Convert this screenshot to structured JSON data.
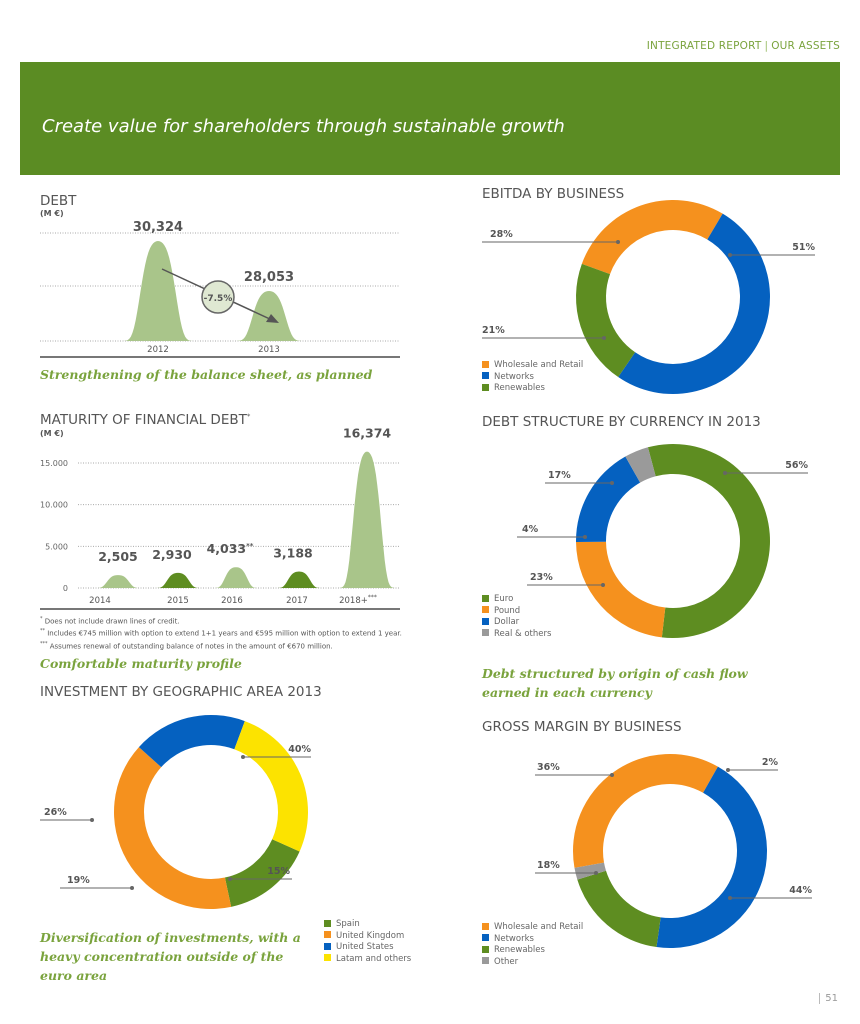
{
  "header": {
    "section": "INTEGRATED REPORT",
    "separator": "|",
    "subsection": "OUR ASSETS",
    "banner_title": "Create value for shareholders through sustainable growth"
  },
  "colors": {
    "banner": "#5b8c23",
    "light_green": "#a9c58a",
    "dark_green": "#5e8d21",
    "orange": "#f5911e",
    "blue": "#0561c0",
    "gray": "#9a9a9a",
    "yellow": "#fce300",
    "caption": "#7aa33d"
  },
  "chart_data": [
    {
      "id": "debt",
      "type": "area",
      "title": "DEBT",
      "unit": "(M €)",
      "categories": [
        "2012",
        "2013"
      ],
      "values": [
        30324,
        28053
      ],
      "value_labels": [
        "30,324",
        "28,053"
      ],
      "change_label": "-7.5%",
      "grid": true,
      "caption": "Strengthening of the balance sheet, as planned"
    },
    {
      "id": "maturity",
      "type": "area",
      "title": "MATURITY OF FINANCIAL DEBT",
      "title_mark": "*",
      "unit": "(M €)",
      "categories": [
        "2014",
        "2015",
        "2016",
        "2017",
        "2018+"
      ],
      "category_marks": [
        "",
        "",
        "",
        "",
        "***"
      ],
      "values": [
        2505,
        2930,
        4033,
        3188,
        16374
      ],
      "value_labels": [
        "2,505",
        "2,930",
        "4,033",
        "3,188",
        "16,374"
      ],
      "value_marks": [
        "",
        "",
        "**",
        "",
        ""
      ],
      "ylim": [
        0,
        16374
      ],
      "yticks": [
        "0",
        "5.000",
        "10.000",
        "15.000"
      ],
      "ytick_values": [
        0,
        5000,
        10000,
        15000
      ],
      "grid": true,
      "footnotes": [
        {
          "mark": "*",
          "text": "Does not include drawn lines of credit."
        },
        {
          "mark": "**",
          "text": "Includes €745 million with option to extend 1+1 years and €595 million with option to extend 1 year."
        },
        {
          "mark": "***",
          "text": "Assumes renewal of outstanding balance of notes in the amount of €670 million."
        }
      ],
      "caption": "Comfortable maturity profile"
    },
    {
      "id": "ebitda",
      "type": "pie",
      "title": "EBITDA BY BUSINESS",
      "series": [
        {
          "name": "Wholesale and Retail",
          "value": 28,
          "label": "28%",
          "color": "#f5911e"
        },
        {
          "name": "Networks",
          "value": 51,
          "label": "51%",
          "color": "#0561c0"
        },
        {
          "name": "Renewables",
          "value": 21,
          "label": "21%",
          "color": "#5e8d21"
        }
      ]
    },
    {
      "id": "currency",
      "type": "pie",
      "title": "DEBT STRUCTURE BY CURRENCY IN 2013",
      "series": [
        {
          "name": "Euro",
          "value": 56,
          "label": "56%",
          "color": "#5e8d21"
        },
        {
          "name": "Pound",
          "value": 23,
          "label": "23%",
          "color": "#f5911e"
        },
        {
          "name": "Dollar",
          "value": 17,
          "label": "17%",
          "color": "#0561c0"
        },
        {
          "name": "Real & others",
          "value": 4,
          "label": "4%",
          "color": "#9a9a9a"
        }
      ],
      "caption": "Debt structured by origin of cash flow earned in each currency"
    },
    {
      "id": "investment",
      "type": "pie",
      "title": "INVESTMENT BY GEOGRAPHIC AREA 2013",
      "series": [
        {
          "name": "Spain",
          "value": 15,
          "label": "15%",
          "color": "#5e8d21"
        },
        {
          "name": "United Kingdom",
          "value": 40,
          "label": "40%",
          "color": "#f5911e"
        },
        {
          "name": "United States",
          "value": 19,
          "label": "19%",
          "color": "#0561c0"
        },
        {
          "name": "Latam and others",
          "value": 26,
          "label": "26%",
          "color": "#fce300"
        }
      ],
      "caption": "Diversification of investments, with a heavy concentration outside of the euro area"
    },
    {
      "id": "gross",
      "type": "pie",
      "title": "GROSS MARGIN BY BUSINESS",
      "series": [
        {
          "name": "Wholesale and Retail",
          "value": 36,
          "label": "36%",
          "color": "#f5911e"
        },
        {
          "name": "Networks",
          "value": 44,
          "label": "44%",
          "color": "#0561c0"
        },
        {
          "name": "Renewables",
          "value": 18,
          "label": "18%",
          "color": "#5e8d21"
        },
        {
          "name": "Other",
          "value": 2,
          "label": "2%",
          "color": "#9a9a9a"
        }
      ]
    }
  ],
  "page_number": "51"
}
